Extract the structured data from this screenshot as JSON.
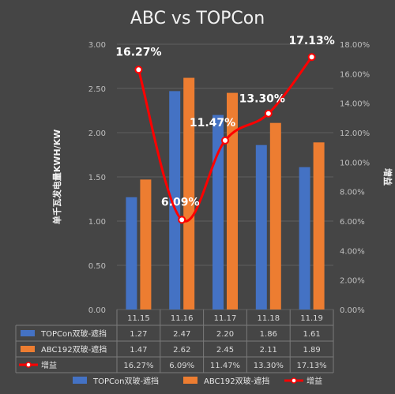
{
  "chart_data": {
    "type": "bar",
    "title": "ABC vs TOPCon",
    "categories": [
      "11.15",
      "11.16",
      "11.17",
      "11.18",
      "11.19"
    ],
    "ylabel": "单千瓦发电量KWH/KW",
    "ylabel_right": "增益",
    "ylim": [
      0,
      3.0
    ],
    "yticks": [
      "0.00",
      "0.50",
      "1.00",
      "1.50",
      "2.00",
      "2.50",
      "3.00"
    ],
    "ylim_right": [
      0,
      18
    ],
    "yticks_right": [
      "0.00%",
      "2.00%",
      "4.00%",
      "6.00%",
      "8.00%",
      "10.00%",
      "12.00%",
      "14.00%",
      "16.00%",
      "18.00%"
    ],
    "grid": true,
    "legend_position": "bottom",
    "series": [
      {
        "name": "TOPCon双玻-遮挡",
        "kind": "bar",
        "axis": "left",
        "color": "#4472c4",
        "values": [
          1.27,
          2.47,
          2.2,
          1.86,
          1.61
        ],
        "table_values": [
          "1.27",
          "2.47",
          "2.20",
          "1.86",
          "1.61"
        ]
      },
      {
        "name": "ABC192双玻-遮挡",
        "kind": "bar",
        "axis": "left",
        "color": "#ed7d31",
        "values": [
          1.47,
          2.62,
          2.45,
          2.11,
          1.89
        ],
        "table_values": [
          "1.47",
          "2.62",
          "2.45",
          "2.11",
          "1.89"
        ]
      },
      {
        "name": "增益",
        "kind": "line",
        "axis": "right",
        "color": "#ff0000",
        "values": [
          16.27,
          6.09,
          11.47,
          13.3,
          17.13
        ],
        "table_values": [
          "16.27%",
          "6.09%",
          "11.47%",
          "13.30%",
          "17.13%"
        ],
        "point_labels": [
          "16.27%",
          "6.09%",
          "11.47%",
          "13.30%",
          "17.13%"
        ]
      }
    ]
  }
}
